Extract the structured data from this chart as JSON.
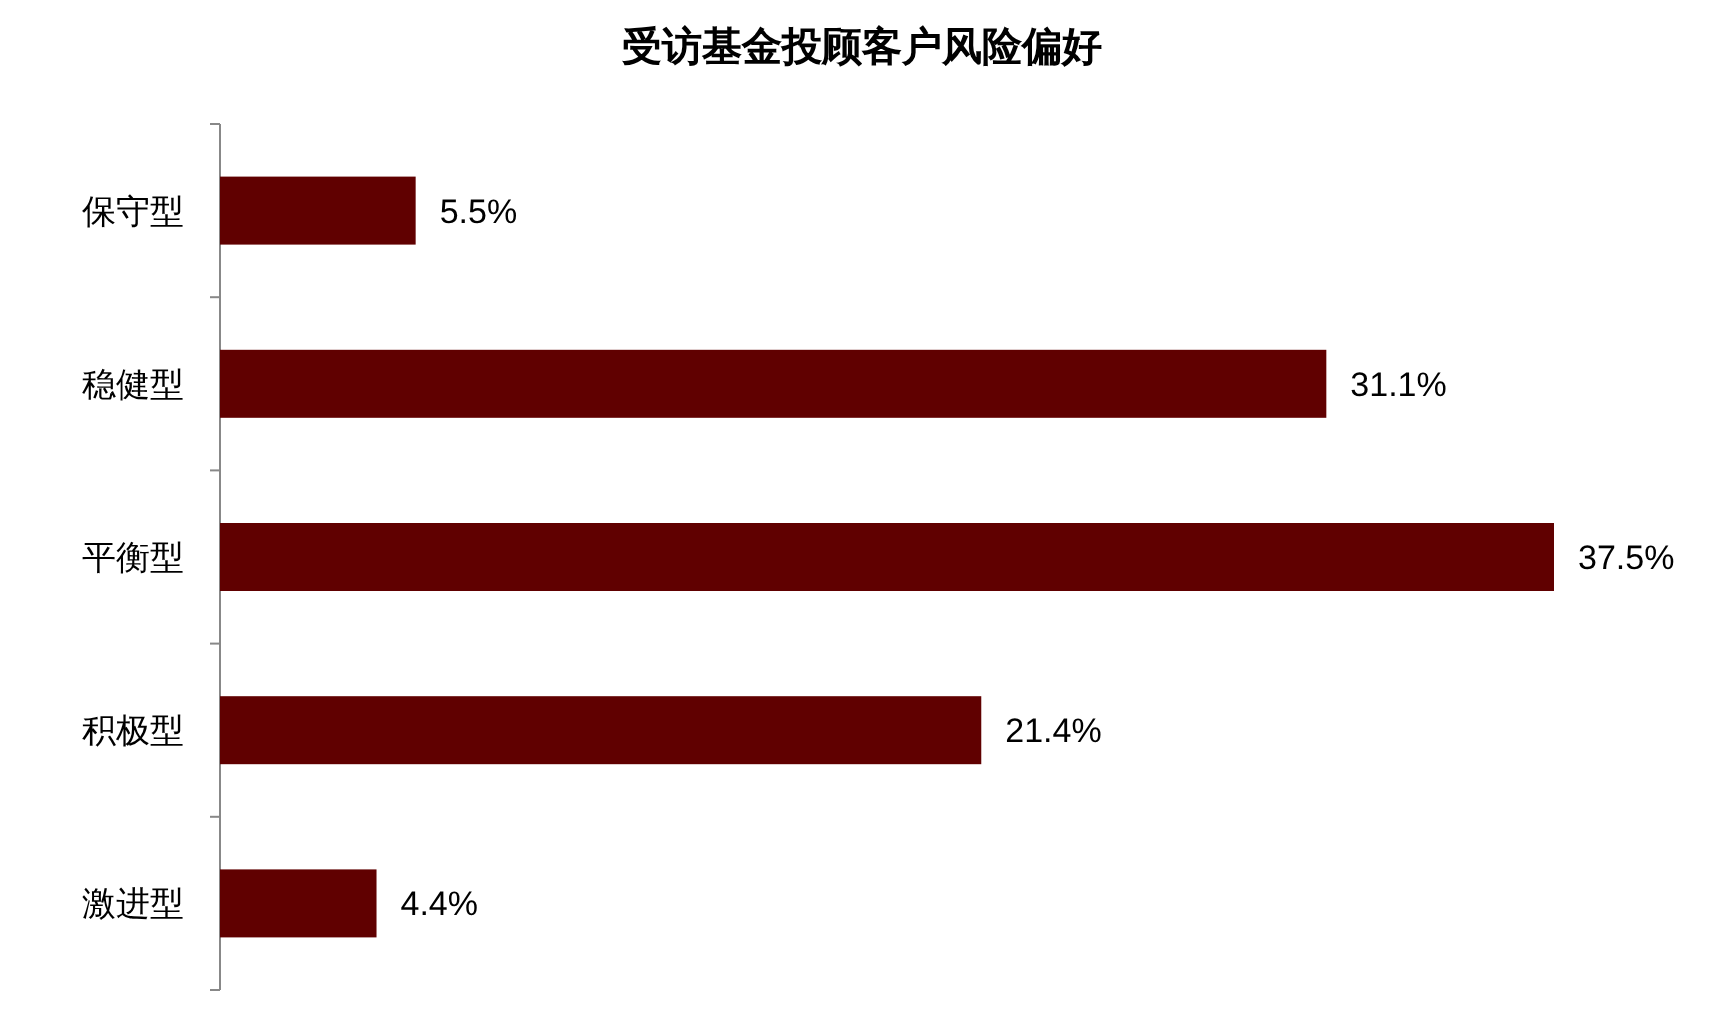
{
  "chart_data": {
    "type": "bar",
    "orientation": "horizontal",
    "title": "受访基金投顾客户风险偏好",
    "categories": [
      "保守型",
      "稳健型",
      "平衡型",
      "积极型",
      "激进型"
    ],
    "values": [
      5.5,
      31.1,
      37.5,
      21.4,
      4.4
    ],
    "value_labels": [
      "5.5%",
      "31.1%",
      "37.5%",
      "21.4%",
      "4.4%"
    ],
    "color": "#600000"
  }
}
